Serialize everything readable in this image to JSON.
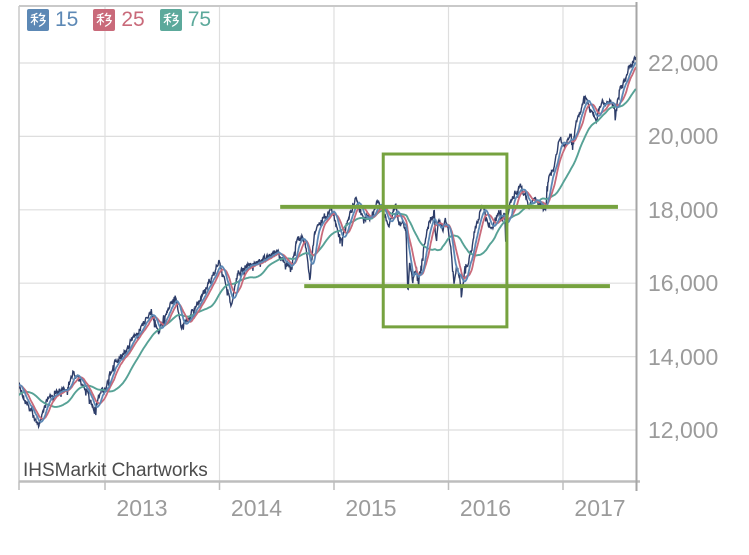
{
  "watermark": "IHSMarkit Chartworks",
  "legend": {
    "items": [
      {
        "badge": "移",
        "label": "15",
        "color": "#5c88b5"
      },
      {
        "badge": "移",
        "label": "25",
        "color": "#c96a7a"
      },
      {
        "badge": "移",
        "label": "75",
        "color": "#5ca99b"
      }
    ]
  },
  "axes": {
    "y_labels": [
      "22,000",
      "20,000",
      "18,000",
      "16,000",
      "14,000",
      "12,000"
    ],
    "x_labels": [
      "2013",
      "2014",
      "2015",
      "2016",
      "2017"
    ]
  },
  "colors": {
    "price": "#2d3d69",
    "ma15": "#5c88b5",
    "ma25": "#c96a7a",
    "ma75": "#57a296",
    "annotation": "#76a23f",
    "grid": "#dedede",
    "border": "#c9c9c9",
    "bottom_axis": "#bdbdbd",
    "right_axis": "#a6a6a6",
    "tick_label": "#9b9b9b",
    "watermark": "#4c4c4c"
  },
  "chart_data": {
    "type": "line",
    "title": "",
    "legend_position": "top-left",
    "grid": true,
    "x_range": [
      2012.249,
      2017.638
    ],
    "y_range": [
      10580,
      23550
    ],
    "x_ticks": [
      2013,
      2014,
      2015,
      2016,
      2017
    ],
    "y_ticks": [
      22000,
      20000,
      18000,
      16000,
      14000,
      12000
    ],
    "series": [
      {
        "name": "price",
        "type": "line",
        "color": "#2d3d69",
        "points": [
          [
            2011.88,
            12100
          ],
          [
            2011.92,
            12250
          ],
          [
            2011.96,
            12400
          ],
          [
            2012.0,
            12633
          ],
          [
            2012.083,
            12952
          ],
          [
            2012.167,
            13212
          ],
          [
            2012.25,
            13214
          ],
          [
            2012.33,
            12630
          ],
          [
            2012.375,
            12393
          ],
          [
            2012.42,
            12118
          ],
          [
            2012.5,
            12880
          ],
          [
            2012.583,
            13009
          ],
          [
            2012.625,
            13158
          ],
          [
            2012.667,
            13091
          ],
          [
            2012.72,
            13565
          ],
          [
            2012.75,
            13437
          ],
          [
            2012.83,
            13096
          ],
          [
            2012.875,
            12815
          ],
          [
            2012.9,
            12542
          ],
          [
            2012.958,
            13026
          ],
          [
            2013.0,
            13104
          ],
          [
            2013.083,
            13861
          ],
          [
            2013.167,
            14054
          ],
          [
            2013.25,
            14579
          ],
          [
            2013.333,
            14840
          ],
          [
            2013.4,
            15307
          ],
          [
            2013.417,
            15116
          ],
          [
            2013.47,
            14660
          ],
          [
            2013.5,
            14910
          ],
          [
            2013.583,
            15500
          ],
          [
            2013.62,
            15628
          ],
          [
            2013.667,
            14810
          ],
          [
            2013.75,
            15130
          ],
          [
            2013.833,
            15546
          ],
          [
            2013.917,
            16086
          ],
          [
            2014.0,
            16577
          ],
          [
            2014.08,
            15699
          ],
          [
            2014.1,
            15373
          ],
          [
            2014.167,
            16322
          ],
          [
            2014.25,
            16458
          ],
          [
            2014.333,
            16581
          ],
          [
            2014.417,
            16717
          ],
          [
            2014.5,
            16827
          ],
          [
            2014.583,
            16563
          ],
          [
            2014.63,
            16429
          ],
          [
            2014.667,
            17098
          ],
          [
            2014.72,
            17280
          ],
          [
            2014.75,
            17043
          ],
          [
            2014.79,
            16117
          ],
          [
            2014.833,
            17391
          ],
          [
            2014.917,
            17828
          ],
          [
            2014.98,
            18053
          ],
          [
            2015.0,
            17823
          ],
          [
            2015.06,
            17164
          ],
          [
            2015.17,
            18133
          ],
          [
            2015.19,
            18289
          ],
          [
            2015.25,
            17776
          ],
          [
            2015.333,
            17841
          ],
          [
            2015.38,
            18272
          ],
          [
            2015.417,
            18011
          ],
          [
            2015.48,
            17596
          ],
          [
            2015.54,
            18120
          ],
          [
            2015.57,
            17569
          ],
          [
            2015.6,
            17690
          ],
          [
            2015.63,
            17409
          ],
          [
            2015.645,
            15666
          ],
          [
            2015.66,
            16655
          ],
          [
            2015.69,
            16058
          ],
          [
            2015.72,
            16385
          ],
          [
            2015.74,
            16002
          ],
          [
            2015.75,
            16285
          ],
          [
            2015.79,
            17084
          ],
          [
            2015.833,
            17664
          ],
          [
            2015.875,
            17911
          ],
          [
            2015.89,
            17245
          ],
          [
            2015.917,
            17720
          ],
          [
            2015.95,
            17425
          ],
          [
            2015.97,
            17750
          ],
          [
            2016.0,
            17425
          ],
          [
            2016.02,
            16906
          ],
          [
            2016.05,
            15988
          ],
          [
            2016.07,
            16466
          ],
          [
            2016.1,
            16027
          ],
          [
            2016.115,
            15660
          ],
          [
            2016.14,
            16392
          ],
          [
            2016.167,
            16517
          ],
          [
            2016.22,
            17229
          ],
          [
            2016.25,
            17685
          ],
          [
            2016.3,
            18096
          ],
          [
            2016.333,
            17774
          ],
          [
            2016.38,
            17435
          ],
          [
            2016.417,
            17787
          ],
          [
            2016.45,
            18005
          ],
          [
            2016.47,
            17675
          ],
          [
            2016.49,
            18011
          ],
          [
            2016.5,
            17140
          ],
          [
            2016.52,
            17930
          ],
          [
            2016.55,
            18347
          ],
          [
            2016.583,
            18432
          ],
          [
            2016.63,
            18636
          ],
          [
            2016.667,
            18401
          ],
          [
            2016.7,
            18085
          ],
          [
            2016.75,
            18308
          ],
          [
            2016.79,
            18161
          ],
          [
            2016.82,
            18142
          ],
          [
            2016.85,
            17888
          ],
          [
            2016.86,
            18590
          ],
          [
            2016.875,
            18868
          ],
          [
            2016.917,
            19124
          ],
          [
            2016.97,
            19975
          ],
          [
            2017.0,
            19763
          ],
          [
            2017.04,
            19891
          ],
          [
            2017.07,
            20069
          ],
          [
            2017.083,
            19864
          ],
          [
            2017.12,
            20412
          ],
          [
            2017.167,
            20812
          ],
          [
            2017.19,
            21116
          ],
          [
            2017.25,
            20663
          ],
          [
            2017.29,
            20404
          ],
          [
            2017.333,
            20941
          ],
          [
            2017.38,
            20897
          ],
          [
            2017.417,
            21009
          ],
          [
            2017.46,
            20607
          ],
          [
            2017.5,
            21350
          ],
          [
            2017.52,
            21409
          ],
          [
            2017.55,
            21580
          ],
          [
            2017.58,
            21891
          ],
          [
            2017.61,
            22020
          ],
          [
            2017.637,
            22090
          ]
        ]
      },
      {
        "name": "移 15",
        "type": "moving_average",
        "window_days": 15,
        "color": "#5c88b5"
      },
      {
        "name": "移 25",
        "type": "moving_average",
        "window_days": 25,
        "color": "#c96a7a"
      },
      {
        "name": "移 75",
        "type": "moving_average",
        "window_days": 75,
        "color": "#57a296"
      }
    ],
    "annotations": {
      "horizontal_lines": [
        {
          "value": 18080,
          "x_from": 2014.53,
          "x_to": 2017.48,
          "color": "#76a23f"
        },
        {
          "value": 15920,
          "x_from": 2014.74,
          "x_to": 2017.41,
          "color": "#76a23f"
        }
      ],
      "box": {
        "x_from": 2015.43,
        "x_to": 2016.51,
        "value_top": 19520,
        "value_bottom": 14810,
        "color": "#76a23f"
      }
    }
  }
}
